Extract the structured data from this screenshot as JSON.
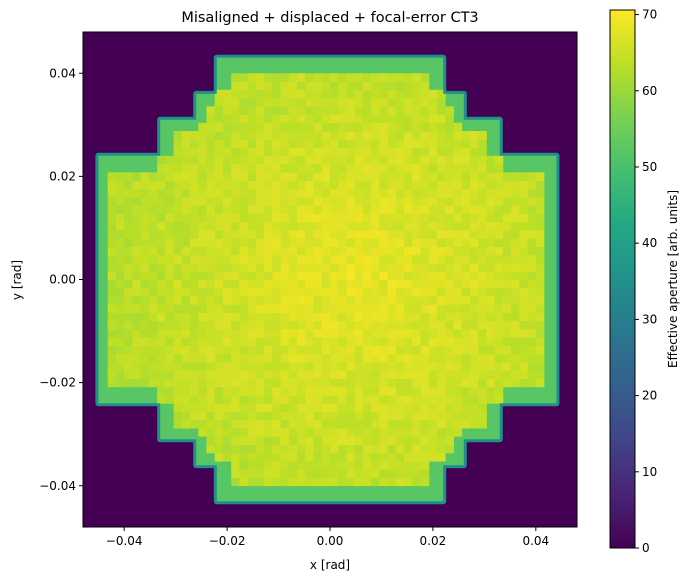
{
  "chart_data": {
    "type": "heatmap",
    "title": "Misaligned + displaced + focal-error CT3",
    "xlabel": "x [rad]",
    "ylabel": "y [rad]",
    "xlim": [
      -0.048,
      0.048
    ],
    "ylim": [
      -0.048,
      0.048
    ],
    "xticks": [
      -0.04,
      -0.02,
      0.0,
      0.02,
      0.04
    ],
    "xtick_labels": [
      "−0.04",
      "−0.02",
      "0.00",
      "0.02",
      "0.04"
    ],
    "yticks": [
      -0.04,
      -0.02,
      0.0,
      0.02,
      0.04
    ],
    "ytick_labels": [
      "−0.04",
      "−0.02",
      "0.00",
      "0.02",
      "0.04"
    ],
    "colormap": "viridis",
    "colorbar": {
      "label": "Effective aperture [arb. units]",
      "range": [
        0,
        70.6
      ],
      "ticks": [
        0,
        10,
        20,
        30,
        40,
        50,
        60,
        70
      ],
      "tick_labels": [
        "0",
        "10",
        "20",
        "30",
        "40",
        "50",
        "60",
        "70"
      ]
    },
    "background_value": 0,
    "interior_value_range": [
      54,
      70
    ],
    "edge_value_range": [
      35,
      52
    ],
    "footprint_outline": {
      "description": "cross-shaped stepped footprint (filled region boundary, data units)",
      "points": [
        [
          -0.022,
          0.043
        ],
        [
          0.022,
          0.043
        ],
        [
          0.022,
          0.036
        ],
        [
          0.026,
          0.036
        ],
        [
          0.026,
          0.031
        ],
        [
          0.033,
          0.031
        ],
        [
          0.033,
          0.024
        ],
        [
          0.044,
          0.024
        ],
        [
          0.044,
          -0.024
        ],
        [
          0.033,
          -0.024
        ],
        [
          0.033,
          -0.031
        ],
        [
          0.026,
          -0.031
        ],
        [
          0.026,
          -0.036
        ],
        [
          0.022,
          -0.036
        ],
        [
          0.022,
          -0.043
        ],
        [
          -0.022,
          -0.043
        ],
        [
          -0.022,
          -0.036
        ],
        [
          -0.026,
          -0.036
        ],
        [
          -0.026,
          -0.031
        ],
        [
          -0.033,
          -0.031
        ],
        [
          -0.033,
          -0.024
        ],
        [
          -0.045,
          -0.024
        ],
        [
          -0.045,
          0.024
        ],
        [
          -0.033,
          0.024
        ],
        [
          -0.033,
          0.031
        ],
        [
          -0.026,
          0.031
        ],
        [
          -0.026,
          0.036
        ],
        [
          -0.022,
          0.036
        ]
      ]
    },
    "peak_region_center": [
      0.006,
      0.0
    ],
    "grid": false
  }
}
